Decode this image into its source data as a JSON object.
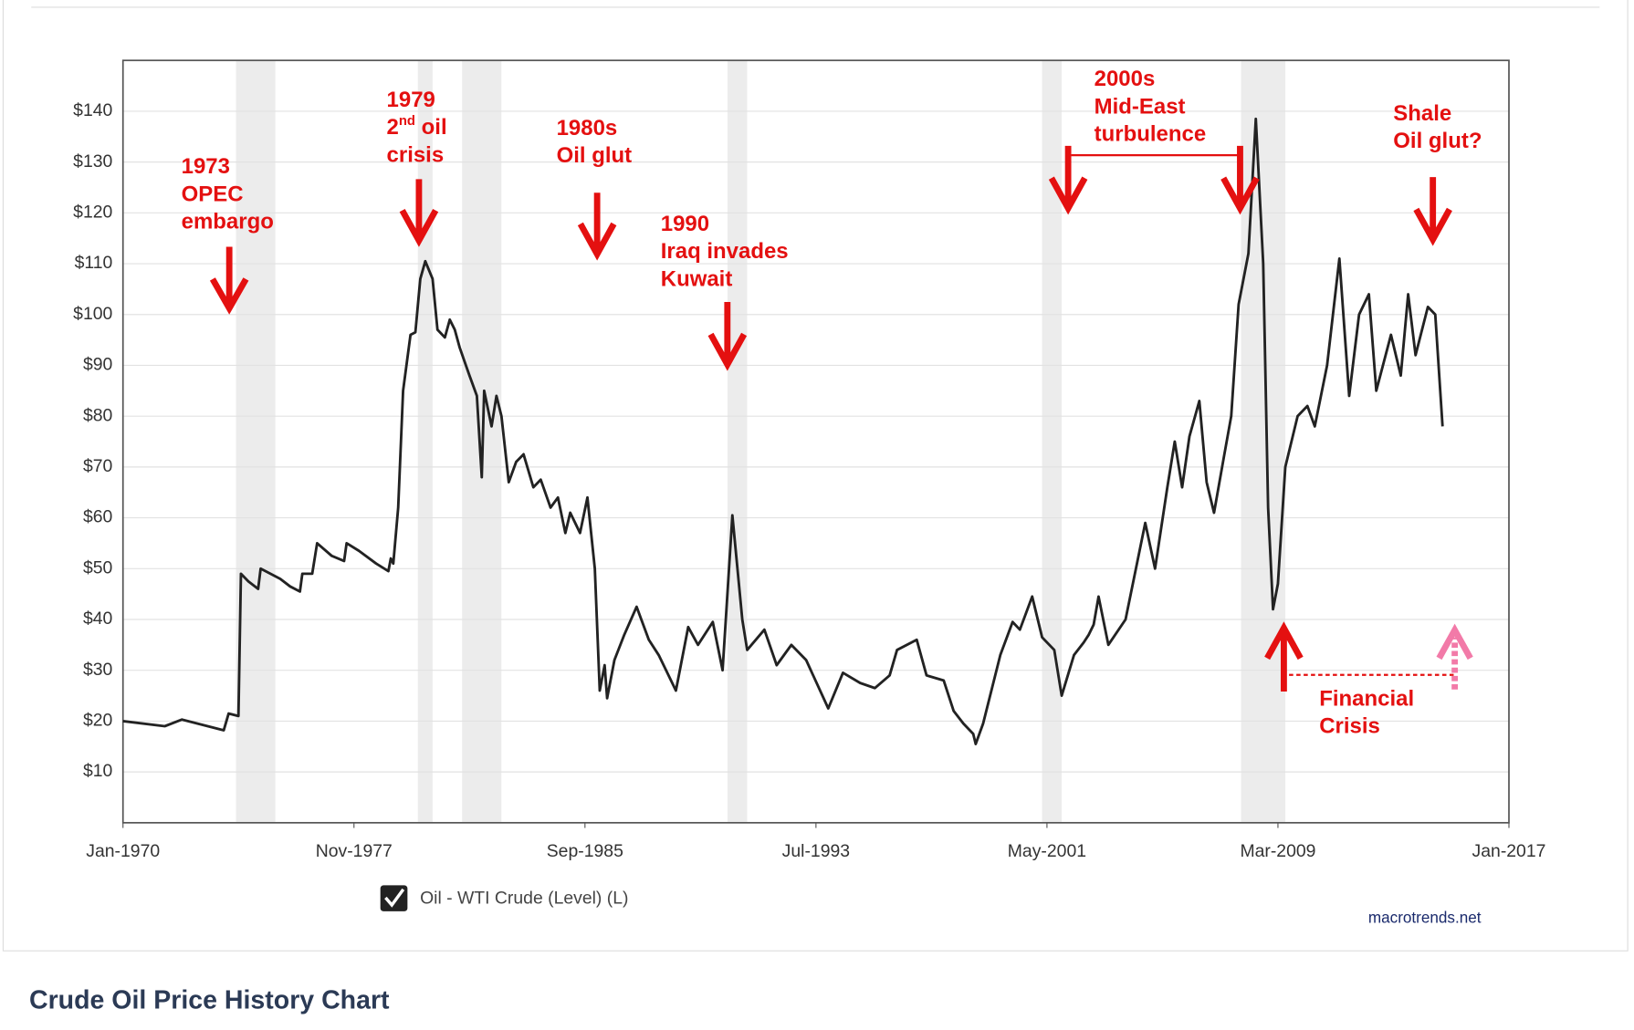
{
  "chart_data": {
    "type": "line",
    "series": [
      {
        "name": "Oil - WTI Crude (Level) (L)",
        "color": "#222222",
        "values": [
          20,
          19,
          20.3,
          18.2,
          21.5,
          21,
          49,
          47.5,
          46,
          50,
          49,
          48,
          46.5,
          45.5,
          49,
          49,
          55,
          52.5,
          51.5,
          55,
          53.5,
          51,
          49.5,
          52,
          51,
          62,
          85,
          96,
          96.5,
          107,
          110.5,
          107,
          97,
          95.5,
          99,
          97,
          93.5,
          88,
          84,
          68,
          85,
          78,
          84,
          80,
          67,
          71,
          72.5,
          66,
          67.5,
          62,
          64,
          57,
          61,
          57,
          64,
          50,
          26,
          31,
          24.5,
          32,
          37,
          42.5,
          36,
          33,
          30,
          26,
          38.5,
          35,
          39.5,
          30,
          60.5,
          40,
          34,
          38,
          31,
          35,
          32,
          22.5,
          29.5,
          27.5,
          26.5,
          29,
          34,
          36,
          29,
          28,
          22,
          19.5,
          17.5,
          15.5,
          19.5,
          33,
          39.5,
          38,
          44.5,
          36.5,
          34,
          25,
          33,
          35.5,
          37,
          39,
          44.5,
          35,
          40,
          59,
          50,
          66,
          75,
          66,
          76,
          83,
          67,
          61,
          72,
          80,
          102,
          112,
          138.5,
          110,
          62,
          42,
          47,
          70,
          80,
          82,
          78,
          90,
          111,
          84,
          100,
          104,
          85,
          96,
          88,
          104,
          92,
          101.5,
          100,
          78
        ]
      }
    ],
    "x": [
      "1970-01",
      "1971-06",
      "1972-01",
      "1973-06",
      "1973-08",
      "1973-12",
      "1974-01",
      "1974-04",
      "1974-08",
      "1974-09",
      "1975-01",
      "1975-05",
      "1975-09",
      "1976-01",
      "1976-02",
      "1976-06",
      "1976-08",
      "1977-02",
      "1977-07",
      "1977-08",
      "1978-01",
      "1978-08",
      "1979-01",
      "1979-02",
      "1979-03",
      "1979-05",
      "1979-07",
      "1979-10",
      "1979-12",
      "1980-02",
      "1980-04",
      "1980-07",
      "1980-09",
      "1980-12",
      "1981-02",
      "1981-04",
      "1981-06",
      "1981-10",
      "1982-01",
      "1982-03",
      "1982-04",
      "1982-07",
      "1982-09",
      "1982-11",
      "1983-02",
      "1983-05",
      "1983-08",
      "1983-12",
      "1984-03",
      "1984-07",
      "1984-10",
      "1985-01",
      "1985-03",
      "1985-07",
      "1985-10",
      "1986-01",
      "1986-03",
      "1986-05",
      "1986-06",
      "1986-09",
      "1987-01",
      "1987-06",
      "1987-11",
      "1988-03",
      "1988-06",
      "1988-10",
      "1989-03",
      "1989-07",
      "1990-01",
      "1990-05",
      "1990-09",
      "1991-01",
      "1991-03",
      "1991-10",
      "1992-03",
      "1992-09",
      "1993-03",
      "1993-12",
      "1994-06",
      "1995-01",
      "1995-07",
      "1996-01",
      "1996-04",
      "1996-12",
      "1997-04",
      "1997-11",
      "1998-03",
      "1998-07",
      "1998-11",
      "1998-12",
      "1999-03",
      "1999-10",
      "2000-03",
      "2000-06",
      "2000-11",
      "2001-03",
      "2001-08",
      "2001-11",
      "2002-04",
      "2002-08",
      "2002-10",
      "2002-12",
      "2003-02",
      "2003-06",
      "2004-01",
      "2004-09",
      "2005-01",
      "2005-06",
      "2005-09",
      "2005-12",
      "2006-03",
      "2006-07",
      "2006-10",
      "2007-01",
      "2007-05",
      "2007-08",
      "2007-11",
      "2008-03",
      "2008-06",
      "2008-09",
      "2008-11",
      "2009-01",
      "2009-03",
      "2009-06",
      "2009-11",
      "2010-03",
      "2010-06",
      "2010-11",
      "2011-04",
      "2011-08",
      "2011-12",
      "2012-04",
      "2012-07",
      "2013-01",
      "2013-05",
      "2013-08",
      "2013-11",
      "2014-04",
      "2014-07",
      "2014-10"
    ],
    "xlim": [
      "1970-01",
      "2017-01"
    ],
    "xticks": [
      {
        "value": "1970-01",
        "label": "Jan-1970"
      },
      {
        "value": "1977-11",
        "label": "Nov-1977"
      },
      {
        "value": "1985-09",
        "label": "Sep-1985"
      },
      {
        "value": "1993-07",
        "label": "Jul-1993"
      },
      {
        "value": "2001-05",
        "label": "May-2001"
      },
      {
        "value": "2009-03",
        "label": "Mar-2009"
      },
      {
        "value": "2017-01",
        "label": "Jan-2017"
      }
    ],
    "ylim": [
      0,
      150
    ],
    "yticks": [
      {
        "value": 10,
        "label": "$10"
      },
      {
        "value": 20,
        "label": "$20"
      },
      {
        "value": 30,
        "label": "$30"
      },
      {
        "value": 40,
        "label": "$40"
      },
      {
        "value": 50,
        "label": "$50"
      },
      {
        "value": 60,
        "label": "$60"
      },
      {
        "value": 70,
        "label": "$70"
      },
      {
        "value": 80,
        "label": "$80"
      },
      {
        "value": 90,
        "label": "$90"
      },
      {
        "value": 100,
        "label": "$100"
      },
      {
        "value": 110,
        "label": "$110"
      },
      {
        "value": 120,
        "label": "$120"
      },
      {
        "value": 130,
        "label": "$130"
      },
      {
        "value": 140,
        "label": "$140"
      }
    ],
    "grid": true,
    "recessions": [
      {
        "start": "1973-11",
        "end": "1975-03"
      },
      {
        "start": "1980-01",
        "end": "1980-07"
      },
      {
        "start": "1981-07",
        "end": "1982-11"
      },
      {
        "start": "1990-07",
        "end": "1991-03"
      },
      {
        "start": "2001-03",
        "end": "2001-11"
      },
      {
        "start": "2007-12",
        "end": "2009-06"
      }
    ],
    "annotations": [
      {
        "lines": [
          "1973",
          "OPEC",
          "embargo"
        ]
      },
      {
        "lines": [
          "1979",
          [
            "2",
            "nd",
            " oil"
          ],
          "crisis"
        ]
      },
      {
        "lines": [
          "1980s",
          "Oil glut"
        ]
      },
      {
        "lines": [
          "1990",
          "Iraq invades",
          "Kuwait"
        ]
      },
      {
        "lines": [
          "2000s",
          "Mid-East",
          "turbulence"
        ]
      },
      {
        "lines": [
          "Shale",
          "Oil glut?"
        ]
      },
      {
        "lines": [
          "Financial",
          "Crisis"
        ]
      }
    ]
  },
  "source": "macrotrends.net",
  "page_heading": "Crude Oil Price History Chart"
}
